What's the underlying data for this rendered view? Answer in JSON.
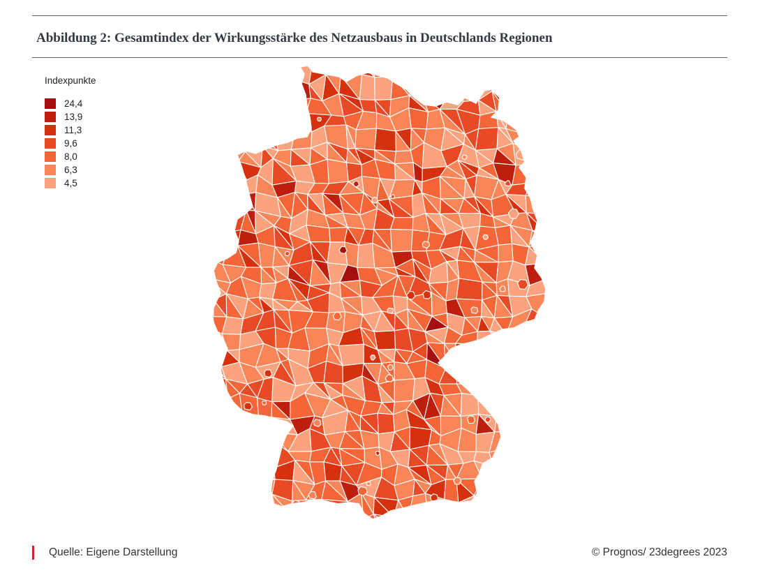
{
  "title": "Abbildung 2: Gesamtindex der Wirkungsstärke des Netzausbaus in Deutschlands Regionen",
  "legend": {
    "title": "Indexpunkte",
    "items": [
      {
        "label": "24,4",
        "color": "#a50f0f"
      },
      {
        "label": "13,9",
        "color": "#bd1e0d"
      },
      {
        "label": "11,3",
        "color": "#d5310f"
      },
      {
        "label": "9,6",
        "color": "#e94a26"
      },
      {
        "label": "8,0",
        "color": "#f46638"
      },
      {
        "label": "6,3",
        "color": "#f98659"
      },
      {
        "label": "4,5",
        "color": "#fba27e"
      }
    ]
  },
  "footer": {
    "source": "Quelle: Eigene Darstellung",
    "copyright": "© Prognos/ 23degrees 2023"
  }
}
